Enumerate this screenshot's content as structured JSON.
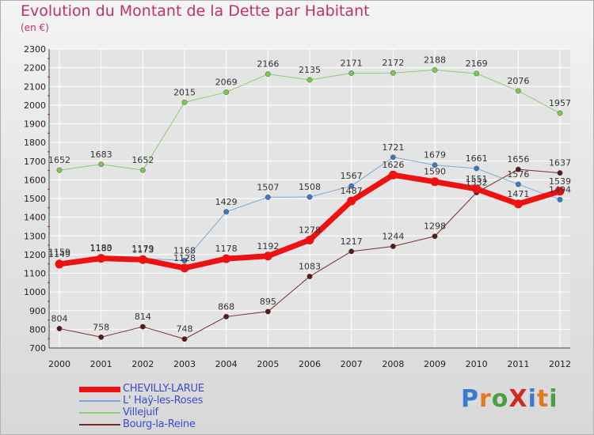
{
  "title": "Evolution du Montant de la Dette par Habitant",
  "subtitle": "(en €)",
  "logo": {
    "text": "ProXiti",
    "letter_colors": [
      "#3a7ad0",
      "#e07a20",
      "#4aa040",
      "#d02a20",
      "#3a7ad0",
      "#e07a20",
      "#4aa040"
    ]
  },
  "colors": {
    "title": "#c0306a",
    "grid": "#ffffff",
    "axis_text": "#222222"
  },
  "chart_data": {
    "type": "line",
    "x": [
      "2000",
      "2001",
      "2002",
      "2003",
      "2004",
      "2005",
      "2006",
      "2007",
      "2008",
      "2009",
      "2010",
      "2011",
      "2012"
    ],
    "ylim": [
      700,
      2300
    ],
    "yticks": [
      700,
      800,
      900,
      1000,
      1100,
      1200,
      1300,
      1400,
      1500,
      1600,
      1700,
      1800,
      1900,
      2000,
      2100,
      2200,
      2300
    ],
    "grid": true,
    "legend_position": "bottom-left",
    "series": [
      {
        "name": "Bourg-la-Reine",
        "color": "#7a2a2a",
        "marker": "#5a1a1a",
        "width": 1,
        "values": [
          804,
          758,
          814,
          748,
          868,
          895,
          1083,
          1217,
          1244,
          1298,
          1532,
          1656,
          1637
        ]
      },
      {
        "name": "Villejuif",
        "color": "#88d070",
        "marker": "#7ac850",
        "width": 1,
        "values": [
          1652,
          1683,
          1652,
          2015,
          2069,
          2166,
          2135,
          2171,
          2172,
          2188,
          2169,
          2076,
          1957
        ]
      },
      {
        "name": "L' Haÿ-les-Roses",
        "color": "#7aa8d8",
        "marker": "#3a7ac8",
        "width": 1,
        "values": [
          1159,
          1183,
          1179,
          1168,
          1429,
          1507,
          1508,
          1567,
          1721,
          1679,
          1661,
          1576,
          1494
        ]
      },
      {
        "name": "CHEVILLY-LARUE",
        "color": "#ee1111",
        "marker": "#ee1111",
        "width": 7,
        "values": [
          1149,
          1180,
          1173,
          1128,
          1178,
          1192,
          1278,
          1487,
          1626,
          1590,
          1551,
          1471,
          1539
        ]
      }
    ]
  },
  "legend": [
    {
      "name": "CHEVILLY-LARUE",
      "color": "#ee1111",
      "height": 7
    },
    {
      "name": "L' Haÿ-les-Roses",
      "color": "#7aa8d8",
      "height": 2
    },
    {
      "name": "Villejuif",
      "color": "#88d070",
      "height": 2
    },
    {
      "name": "Bourg-la-Reine",
      "color": "#7a2a2a",
      "height": 2
    }
  ]
}
